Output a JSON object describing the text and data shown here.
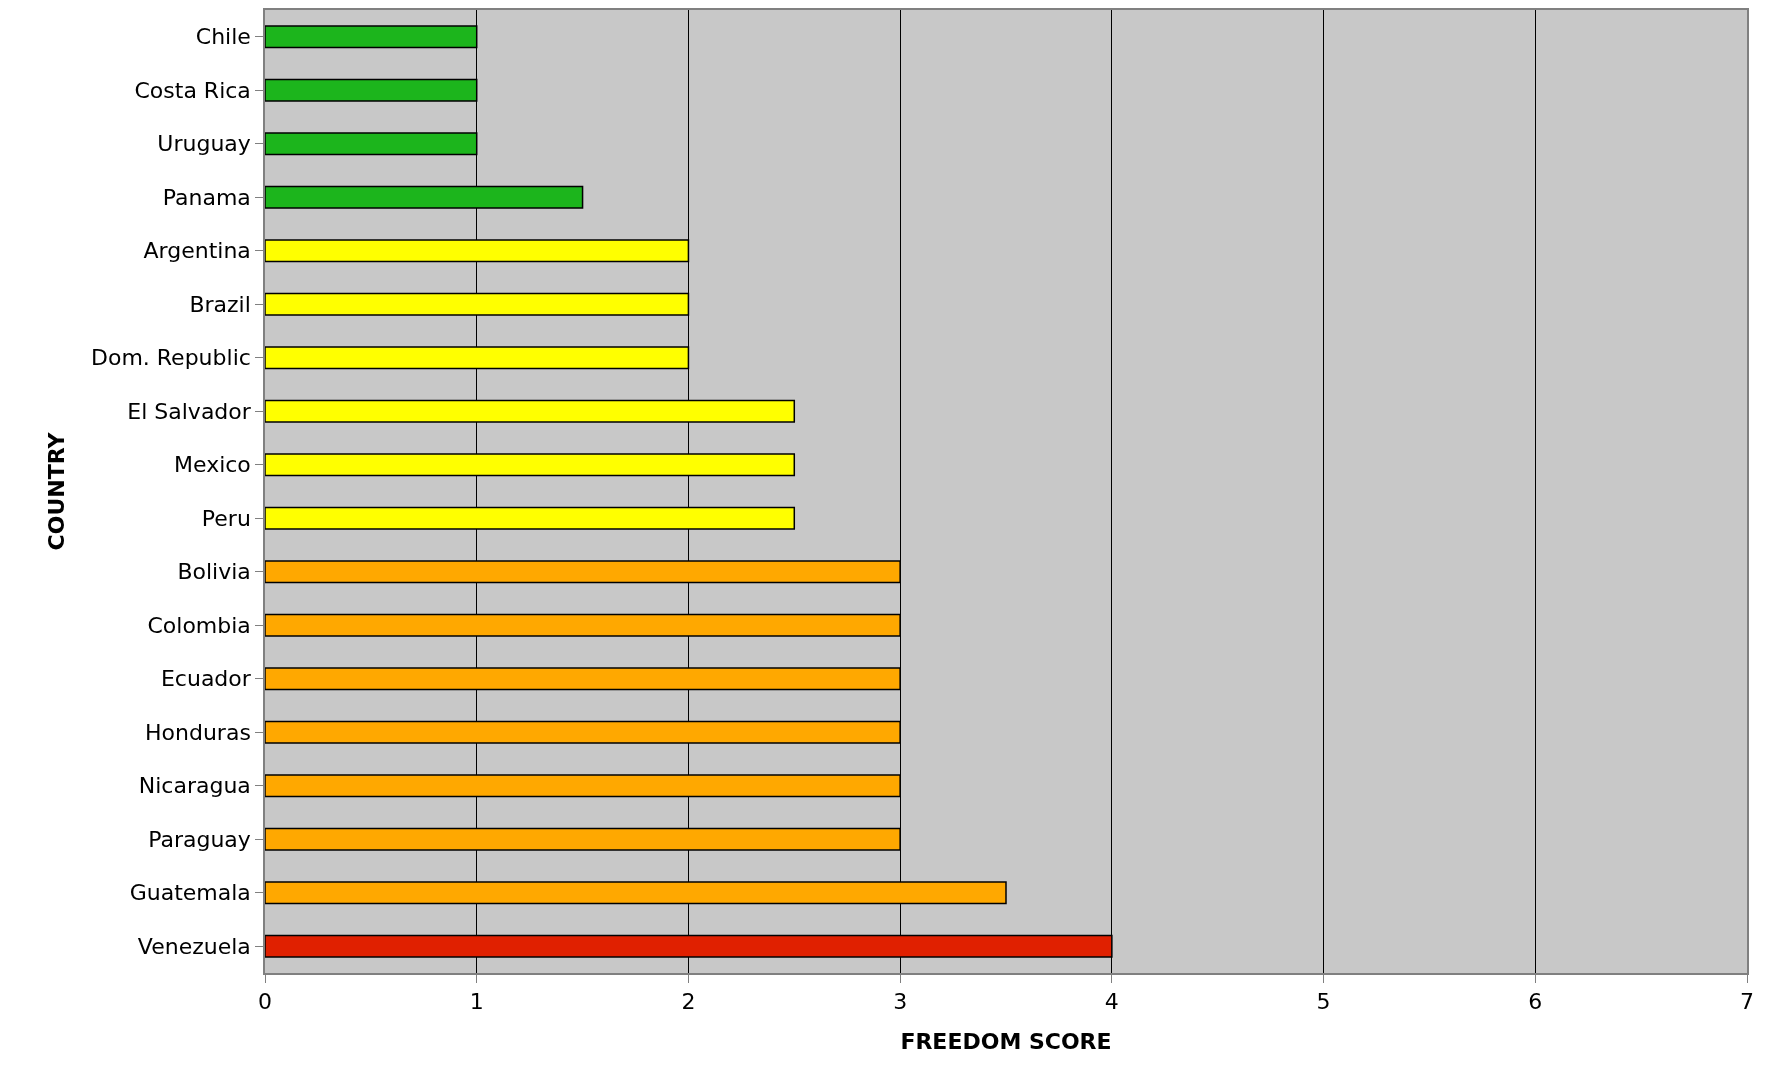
{
  "chart_data": {
    "type": "bar",
    "orientation": "horizontal",
    "xlabel": "FREEDOM SCORE",
    "ylabel": "COUNTRY",
    "categories": [
      "Chile",
      "Costa Rica",
      "Uruguay",
      "Panama",
      "Argentina",
      "Brazil",
      "Dom. Republic",
      "El Salvador",
      "Mexico",
      "Peru",
      "Bolivia",
      "Colombia",
      "Ecuador",
      "Honduras",
      "Nicaragua",
      "Paraguay",
      "Guatemala",
      "Venezuela"
    ],
    "values": [
      1,
      1,
      1,
      1.5,
      2,
      2,
      2,
      2.5,
      2.5,
      2.5,
      3,
      3,
      3,
      3,
      3,
      3,
      3.5,
      4
    ],
    "colors": [
      "#1cb51c",
      "#1cb51c",
      "#1cb51c",
      "#1cb51c",
      "#ffff00",
      "#ffff00",
      "#ffff00",
      "#ffff00",
      "#ffff00",
      "#ffff00",
      "#ffa800",
      "#ffa800",
      "#ffa800",
      "#ffa800",
      "#ffa800",
      "#ffa800",
      "#ffa800",
      "#e02000"
    ],
    "xlim": [
      0,
      7
    ],
    "xticks": [
      0,
      1,
      2,
      3,
      4,
      5,
      6,
      7
    ],
    "grid": "x",
    "legend": false
  }
}
